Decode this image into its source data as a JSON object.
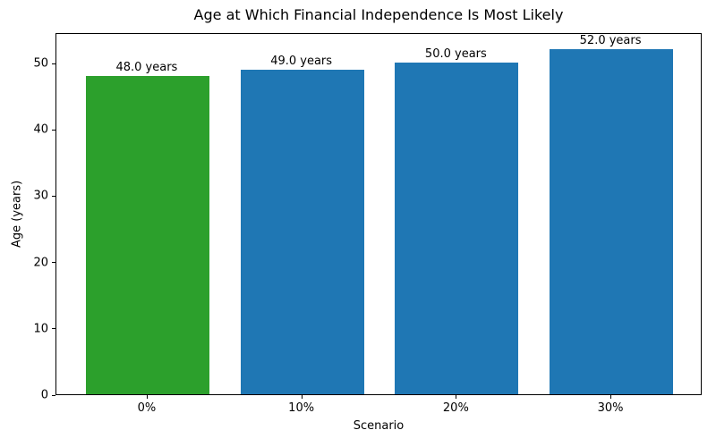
{
  "chart_data": {
    "type": "bar",
    "title": "Age at Which Financial Independence Is Most Likely",
    "xlabel": "Scenario",
    "ylabel": "Age (years)",
    "categories": [
      "0%",
      "10%",
      "20%",
      "30%"
    ],
    "values": [
      48.0,
      49.0,
      50.0,
      52.0
    ],
    "bar_labels": [
      "48.0 years",
      "49.0 years",
      "50.0 years",
      "52.0 years"
    ],
    "bar_colors": [
      "#2ca02c",
      "#1f77b4",
      "#1f77b4",
      "#1f77b4"
    ],
    "yticks": [
      0,
      10,
      20,
      30,
      40,
      50
    ],
    "ylim": [
      0,
      54.6
    ],
    "bar_width_fraction": 0.8,
    "grid": false,
    "legend": "none",
    "background_color": "#ffffff",
    "axis_color": "#000000"
  }
}
